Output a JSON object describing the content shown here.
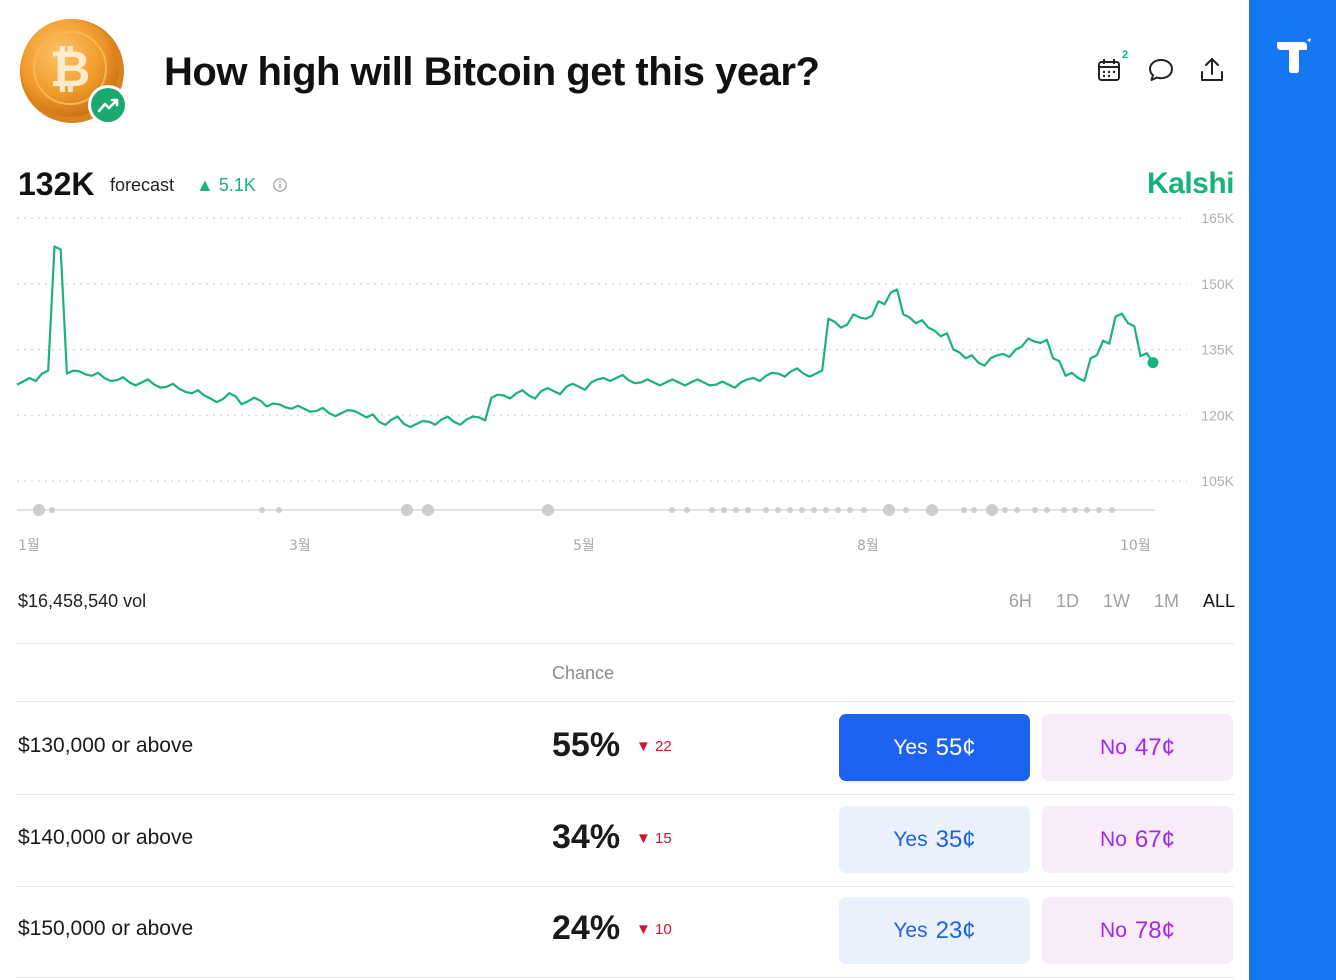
{
  "header": {
    "title": "How high will Bitcoin get this year?",
    "calendar_badge": "2"
  },
  "forecast": {
    "value": "132K",
    "label": "forecast",
    "delta": "5.1K",
    "brand": "Kalshi"
  },
  "colors": {
    "accent_green": "#19b27a",
    "rail_blue": "#1677f2",
    "yes_blue": "#1e63ef",
    "no_purple": "#a229e8",
    "down_red": "#d0142a"
  },
  "chart_data": {
    "type": "line",
    "y_ticks": [
      "165K",
      "150K",
      "135K",
      "120K",
      "105K"
    ],
    "y_tick_values": [
      165000,
      150000,
      135000,
      120000,
      105000
    ],
    "ylim": [
      105000,
      165000
    ],
    "x_ticks": [
      "1월",
      "3월",
      "5월",
      "8월",
      "10월"
    ],
    "grid": true,
    "series": [
      {
        "values": [
          127000,
          128500,
          129500,
          158500,
          129500,
          130000,
          129000,
          128500,
          128000,
          127500,
          127500,
          127000,
          126500,
          126000,
          125000,
          124500,
          123000,
          125000,
          122500,
          124000,
          122000,
          122500,
          121500,
          121500,
          121000,
          120500,
          120500,
          121000,
          119500,
          118500,
          119000,
          118000,
          118000,
          118500,
          119000,
          118500,
          119000,
          119500,
          124000,
          124500,
          125000,
          124500,
          125500,
          125500,
          126500,
          126500,
          127500,
          128500,
          128500,
          128000,
          127500,
          127500,
          127500,
          127500,
          127500,
          127500,
          127000,
          127000,
          127500,
          128500,
          129000,
          129500,
          130000,
          129500,
          129500,
          142000,
          140000,
          143000,
          142000,
          146000,
          148000,
          143000,
          141000,
          140000,
          138000,
          135000,
          133000,
          132000,
          133000,
          134000,
          135000,
          137500,
          136500,
          133000,
          129000,
          128500,
          133000,
          137000,
          142500,
          141000,
          133500,
          132000
        ]
      }
    ],
    "event_dots": true
  },
  "volume": {
    "label": "$16,458,540 vol"
  },
  "ranges": [
    "6H",
    "1D",
    "1W",
    "1M",
    "ALL"
  ],
  "active_range": "ALL",
  "table": {
    "chance_header": "Chance",
    "rows": [
      {
        "label": "$130,000 or above",
        "chance": "55%",
        "delta": "22",
        "yes_side": "Yes",
        "yes_price": "55¢",
        "no_side": "No",
        "no_price": "47¢",
        "yes_selected": true
      },
      {
        "label": "$140,000 or above",
        "chance": "34%",
        "delta": "15",
        "yes_side": "Yes",
        "yes_price": "35¢",
        "no_side": "No",
        "no_price": "67¢",
        "yes_selected": false
      },
      {
        "label": "$150,000 or above",
        "chance": "24%",
        "delta": "10",
        "yes_side": "Yes",
        "yes_price": "23¢",
        "no_side": "No",
        "no_price": "78¢",
        "yes_selected": false
      }
    ]
  }
}
